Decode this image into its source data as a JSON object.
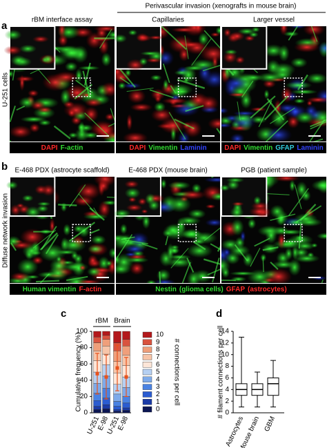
{
  "panel_a": {
    "label": "a",
    "header": "Perivascular invasion (xenografts in mouse brain)",
    "row_label": "U-251 cells",
    "titles": [
      "rBM interface assay",
      "Capillaries",
      "Larger vessel"
    ],
    "captions": [
      [
        {
          "text": "DAPI",
          "color": "#ff2a2a"
        },
        {
          "text": "F-actin",
          "color": "#33dd33"
        }
      ],
      [
        {
          "text": "DAPI",
          "color": "#ff2a2a"
        },
        {
          "text": "Vimentin",
          "color": "#33dd33"
        },
        {
          "text": "Laminin",
          "color": "#3344ff"
        }
      ],
      [
        {
          "text": "DAPI",
          "color": "#ff2a2a"
        },
        {
          "text": "Vimentin",
          "color": "#33dd33"
        },
        {
          "text": "GFAP",
          "color": "#33ccdd"
        },
        {
          "text": "Laminin",
          "color": "#3344ff"
        }
      ]
    ]
  },
  "panel_b": {
    "label": "b",
    "row_label": "Diffuse network invasion",
    "titles": [
      "E-468 PDX (astrocyte scaffold)",
      "E-468 PDX (mouse brain)",
      "PGB (patient sample)"
    ],
    "captions": [
      [
        {
          "text": "Human vimentin",
          "color": "#33dd33"
        },
        {
          "text": "F-actin",
          "color": "#ff2a2a"
        }
      ],
      [
        {
          "text": "Nestin",
          "color": "#33dd33"
        },
        {
          "text": "(glioma cells)",
          "color": "#33dd33"
        },
        {
          "text": "GFAP",
          "color": "#ff2a2a"
        },
        {
          "text": "(astrocytes)",
          "color": "#ff2a2a"
        }
      ]
    ]
  },
  "chart_data": [
    {
      "type": "stacked_bar",
      "label": "c",
      "ylabel": "Cumulative frequency (%)",
      "legend_title": "# connections per cell",
      "groups": [
        "rBM",
        "Brain"
      ],
      "categories": [
        "U-251",
        "E-98",
        "U-251",
        "E-98"
      ],
      "ylim": [
        0,
        100
      ],
      "yticks": [
        0,
        20,
        40,
        60,
        80,
        100
      ],
      "series": [
        {
          "name": "0",
          "color": "#0b1553",
          "values": [
            4,
            5,
            2,
            3
          ]
        },
        {
          "name": "1",
          "color": "#1a3aa6",
          "values": [
            4,
            5,
            2,
            3
          ]
        },
        {
          "name": "2",
          "color": "#2b5cd0",
          "values": [
            7,
            8,
            4,
            6
          ]
        },
        {
          "name": "3",
          "color": "#4a82e2",
          "values": [
            9,
            12,
            6,
            8
          ]
        },
        {
          "name": "4",
          "color": "#7eaaea",
          "values": [
            12,
            15,
            9,
            11
          ]
        },
        {
          "name": "5",
          "color": "#b6d0f2",
          "values": [
            14,
            14,
            12,
            13
          ]
        },
        {
          "name": "6",
          "color": "#fde6d8",
          "values": [
            14,
            13,
            14,
            14
          ]
        },
        {
          "name": "7",
          "color": "#f7c5a9",
          "values": [
            12,
            10,
            14,
            13
          ]
        },
        {
          "name": "8",
          "color": "#ef9f7b",
          "values": [
            10,
            8,
            13,
            11
          ]
        },
        {
          "name": "9",
          "color": "#d9533f",
          "values": [
            7,
            5,
            10,
            8
          ]
        },
        {
          "name": "10",
          "color": "#b3191c",
          "values": [
            7,
            5,
            14,
            10
          ]
        }
      ],
      "error_bars": {
        "color": "#e8521c",
        "values": [
          48,
          44,
          55,
          44
        ],
        "errors": [
          25,
          27,
          28,
          24
        ]
      }
    },
    {
      "type": "box",
      "label": "d",
      "ylabel": "# filament connections per cell",
      "categories": [
        "Astrocytes",
        "Mouse brain",
        "GBM"
      ],
      "ylim": [
        0,
        14
      ],
      "yticks": [
        0,
        2,
        4,
        6,
        8,
        10,
        12,
        14
      ],
      "min": [
        1,
        1,
        1
      ],
      "q1": [
        3,
        3,
        3
      ],
      "median": [
        4,
        4,
        5
      ],
      "q3": [
        5,
        5,
        6
      ],
      "max": [
        13,
        7,
        9
      ]
    }
  ]
}
